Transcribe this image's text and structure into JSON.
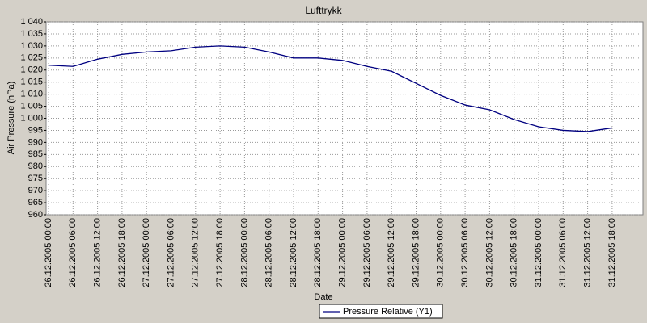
{
  "chart_data": {
    "type": "line",
    "title": "Lufttrykk",
    "x_label": "Date",
    "y_label": "Air Pressure (hPa)",
    "x": [
      "26.12.2005 00:00",
      "26.12.2005 06:00",
      "26.12.2005 12:00",
      "26.12.2005 18:00",
      "27.12.2005 00:00",
      "27.12.2005 06:00",
      "27.12.2005 12:00",
      "27.12.2005 18:00",
      "28.12.2005 00:00",
      "28.12.2005 06:00",
      "28.12.2005 12:00",
      "28.12.2005 18:00",
      "29.12.2005 00:00",
      "29.12.2005 06:00",
      "29.12.2005 12:00",
      "29.12.2005 18:00",
      "30.12.2005 00:00",
      "30.12.2005 06:00",
      "30.12.2005 12:00",
      "30.12.2005 18:00",
      "31.12.2005 00:00",
      "31.12.2005 06:00",
      "31.12.2005 12:00",
      "31.12.2005 18:00"
    ],
    "series": [
      {
        "name": "Pressure Relative (Y1)",
        "color": "#000080",
        "values": [
          1022,
          1021.5,
          1024.5,
          1026.5,
          1027.5,
          1028,
          1029.5,
          1030,
          1029.5,
          1027.5,
          1025,
          1025,
          1024,
          1021.5,
          1019.5,
          1014.5,
          1009.5,
          1005.5,
          1003.5,
          999.5,
          996.5,
          995,
          994.5,
          996
        ]
      }
    ],
    "ylim": [
      960,
      1040
    ],
    "yticks": [
      960,
      965,
      970,
      975,
      980,
      985,
      990,
      995,
      {
        "value": 1000,
        "label": "1 000"
      },
      {
        "value": 1005,
        "label": "1 005"
      },
      {
        "value": 1010,
        "label": "1 010"
      },
      {
        "value": 1015,
        "label": "1 015"
      },
      {
        "value": 1020,
        "label": "1 020"
      },
      {
        "value": 1025,
        "label": "1 025"
      },
      {
        "value": 1030,
        "label": "1 030"
      },
      {
        "value": 1035,
        "label": "1 035"
      },
      {
        "value": 1040,
        "label": "1 040"
      }
    ],
    "grid": true
  }
}
